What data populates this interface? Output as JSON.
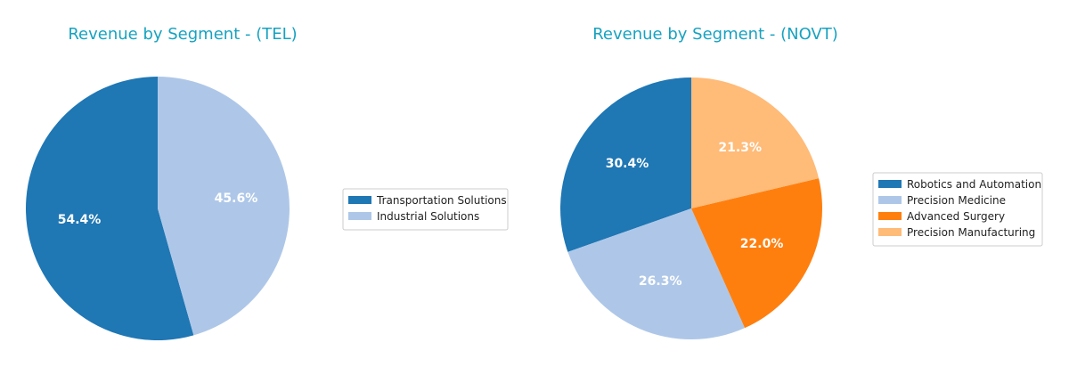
{
  "chart_data": [
    {
      "type": "pie",
      "title": "Revenue by Segment - (TEL)",
      "categories": [
        "Transportation Solutions",
        "Industrial Solutions"
      ],
      "values": [
        54.4,
        45.6
      ],
      "labels": [
        "54.4%",
        "45.6%"
      ],
      "colors": [
        "#1f77b4",
        "#aec7e8"
      ],
      "start_angle_deg": 90,
      "direction": "counterclockwise",
      "legend_placement": "right"
    },
    {
      "type": "pie",
      "title": "Revenue by Segment - (NOVT)",
      "categories": [
        "Robotics and Automation",
        "Precision Medicine",
        "Advanced Surgery",
        "Precision Manufacturing"
      ],
      "values": [
        30.4,
        26.3,
        22.0,
        21.3
      ],
      "labels": [
        "30.4%",
        "26.3%",
        "22.0%",
        "21.3%"
      ],
      "colors": [
        "#1f77b4",
        "#aec7e8",
        "#ff7f0e",
        "#ffbb78"
      ],
      "start_angle_deg": 90,
      "direction": "counterclockwise",
      "legend_placement": "right"
    }
  ]
}
